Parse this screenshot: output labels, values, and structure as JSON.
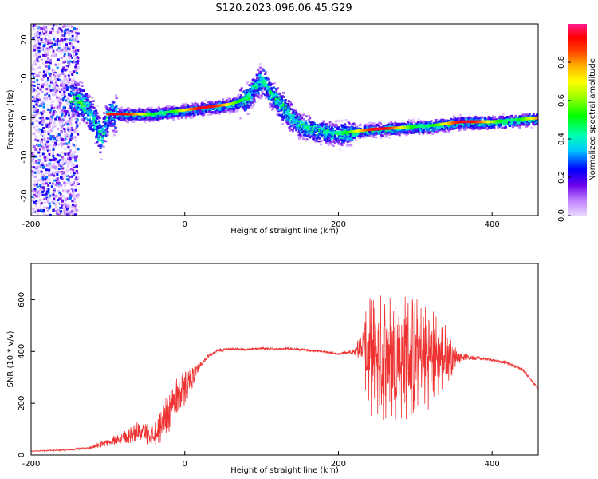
{
  "chart_data": [
    {
      "type": "heatmap",
      "title": "S120.2023.096.06.45.G29",
      "xlabel": "Height of straight line (km)",
      "ylabel": "Frequency (Hz)",
      "xlim": [
        -200,
        460
      ],
      "ylim": [
        -25,
        24
      ],
      "x_ticks": [
        "-200",
        "0",
        "200",
        "400"
      ],
      "x_tick_values": [
        -200,
        0,
        200,
        400
      ],
      "y_ticks": [
        "20",
        "10",
        "0",
        "-10",
        "-20"
      ],
      "y_tick_values": [
        20,
        10,
        0,
        -10,
        -20
      ],
      "colorbar": {
        "label": "Normalized spectral amplitude",
        "ticks": [
          "0.0",
          "0.2",
          "0.4",
          "0.6",
          "0.8"
        ],
        "tick_values": [
          0.0,
          0.2,
          0.4,
          0.6,
          0.8
        ],
        "range": [
          0,
          1
        ]
      },
      "ridge": {
        "x": [
          -140,
          -120,
          -110,
          -100,
          -80,
          -40,
          0,
          40,
          60,
          80,
          90,
          100,
          110,
          130,
          150,
          180,
          200,
          240,
          280,
          320,
          360,
          400,
          460
        ],
        "y": [
          5,
          0,
          -5,
          1,
          1,
          1,
          2,
          3,
          3.5,
          5,
          8,
          10,
          7,
          2,
          -2,
          -3.5,
          -4,
          -3,
          -2.5,
          -2,
          -1,
          -1,
          0
        ]
      }
    },
    {
      "type": "line",
      "title": "",
      "xlabel": "Height of straight line (km)",
      "ylabel": "SNR (10 * v/v)",
      "xlim": [
        -200,
        460
      ],
      "ylim": [
        0,
        740
      ],
      "x_ticks": [
        "-200",
        "0",
        "200",
        "400"
      ],
      "x_tick_values": [
        -200,
        0,
        200,
        400
      ],
      "y_ticks": [
        "0",
        "200",
        "400",
        "600"
      ],
      "y_tick_values": [
        0,
        200,
        400,
        600
      ],
      "color": "#ee3333",
      "series": [
        {
          "x": [
            -200,
            -150,
            -120,
            -100,
            -80,
            -60,
            -40,
            -30,
            -20,
            -10,
            0,
            10,
            20,
            30,
            40,
            60,
            80,
            100,
            120,
            140,
            160,
            180,
            200,
            220,
            230,
            240,
            260,
            280,
            300,
            320,
            340,
            350,
            360,
            380,
            400,
            420,
            440,
            460
          ],
          "y": [
            15,
            20,
            30,
            50,
            70,
            90,
            80,
            120,
            180,
            230,
            260,
            300,
            340,
            380,
            400,
            410,
            408,
            412,
            410,
            410,
            405,
            400,
            390,
            400,
            420,
            380,
            380,
            380,
            380,
            380,
            380,
            380,
            380,
            375,
            368,
            355,
            330,
            255
          ],
          "noise": [
            2,
            3,
            6,
            15,
            30,
            40,
            45,
            70,
            90,
            90,
            70,
            40,
            20,
            10,
            8,
            5,
            5,
            5,
            5,
            5,
            5,
            5,
            5,
            10,
            60,
            230,
            260,
            260,
            240,
            200,
            130,
            50,
            15,
            8,
            6,
            6,
            6,
            6
          ]
        }
      ]
    }
  ]
}
